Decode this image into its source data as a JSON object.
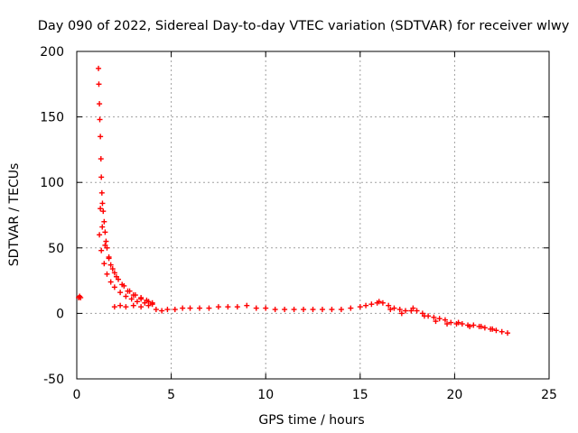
{
  "chart_data": {
    "type": "scatter",
    "title": "Day 090 of 2022, Sidereal Day-to-day VTEC variation (SDTVAR) for receiver wlwy",
    "xlabel": "GPS time / hours",
    "ylabel": "SDTVAR / TECUs",
    "xlim": [
      0,
      25
    ],
    "ylim": [
      -50,
      200
    ],
    "xticks": [
      0,
      5,
      10,
      15,
      20,
      25
    ],
    "yticks": [
      -50,
      0,
      50,
      100,
      150,
      200
    ],
    "grid": true,
    "marker": "+",
    "color": "#ff0000",
    "series": [
      {
        "name": "SDTVAR",
        "x": [
          0.1,
          0.15,
          0.2,
          1.15,
          1.17,
          1.2,
          1.22,
          1.25,
          1.28,
          1.3,
          1.33,
          1.36,
          1.4,
          1.45,
          1.5,
          1.55,
          1.6,
          1.7,
          1.8,
          2.0,
          2.2,
          2.5,
          2.8,
          3.1,
          3.4,
          3.7,
          4.0,
          1.2,
          1.3,
          1.45,
          1.6,
          1.8,
          2.0,
          2.3,
          2.6,
          2.9,
          3.2,
          3.6,
          4.0,
          1.25,
          1.35,
          1.5,
          1.7,
          1.9,
          2.1,
          2.4,
          2.7,
          3.0,
          3.4,
          3.8,
          2.0,
          2.3,
          2.6,
          3.0,
          3.4,
          3.8,
          4.2,
          4.5,
          4.8,
          5.2,
          5.6,
          6.0,
          6.5,
          7.0,
          7.5,
          8.0,
          8.5,
          9.0,
          9.5,
          10.0,
          10.5,
          11.0,
          11.5,
          12.0,
          12.5,
          13.0,
          13.5,
          14.0,
          14.5,
          15.0,
          15.3,
          15.6,
          15.9,
          16.2,
          16.5,
          16.8,
          17.1,
          17.4,
          17.7,
          18.0,
          18.3,
          18.6,
          18.9,
          19.2,
          19.5,
          19.8,
          20.1,
          20.4,
          20.7,
          21.0,
          21.3,
          21.6,
          21.9,
          22.2,
          22.5,
          22.8,
          16.0,
          16.6,
          17.2,
          17.8,
          18.4,
          19.0,
          19.6,
          20.2,
          20.8,
          21.4,
          22.0
        ],
        "y": [
          12,
          13,
          12,
          187,
          175,
          160,
          148,
          135,
          118,
          104,
          92,
          84,
          78,
          70,
          62,
          55,
          50,
          43,
          37,
          31,
          26,
          21,
          17,
          14,
          12,
          10,
          8,
          60,
          48,
          38,
          30,
          24,
          20,
          16,
          13,
          11,
          9,
          8,
          7,
          80,
          66,
          52,
          42,
          34,
          28,
          22,
          17,
          14,
          11,
          9,
          5,
          6,
          5,
          6,
          5,
          6,
          3,
          2,
          3,
          3,
          4,
          4,
          4,
          4,
          5,
          5,
          5,
          6,
          4,
          4,
          3,
          3,
          3,
          3,
          3,
          3,
          3,
          3,
          4,
          5,
          6,
          7,
          8,
          8,
          6,
          4,
          3,
          2,
          2,
          2,
          0,
          -2,
          -3,
          -4,
          -5,
          -7,
          -8,
          -8,
          -9,
          -9,
          -10,
          -11,
          -12,
          -13,
          -14,
          -15,
          9,
          3,
          0,
          4,
          -2,
          -6,
          -8,
          -7,
          -10,
          -10,
          -12
        ]
      }
    ]
  }
}
